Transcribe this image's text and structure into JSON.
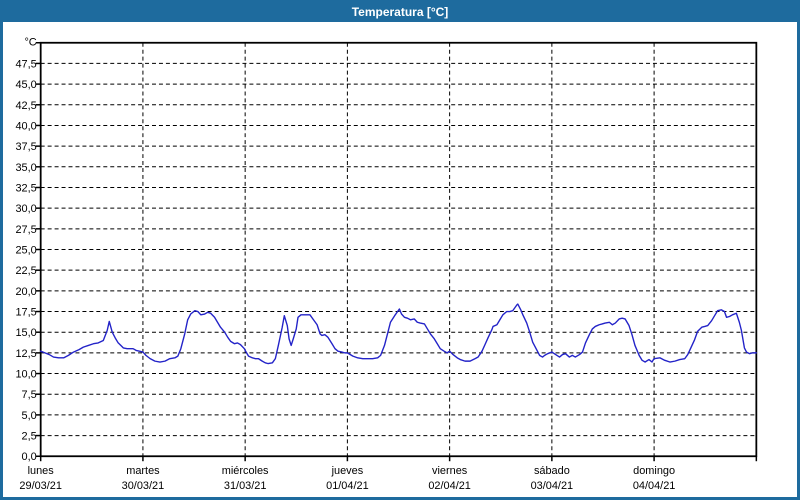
{
  "window": {
    "title": "Temperatura [°C]"
  },
  "colors": {
    "frame": "#1E6B9E",
    "titlebar_bg": "#1E6B9E",
    "title_text": "#FFFFFF",
    "plot_border": "#000000",
    "gridline": "#000000",
    "line": "#2323C8",
    "label_text": "#000000",
    "background": "#FFFFFF"
  },
  "chart_data": {
    "type": "line",
    "title": "Temperatura [°C]",
    "legend": "none",
    "grid": "dashed",
    "y_axis": {
      "unit_label": "°C",
      "min": 0,
      "max": 50,
      "tick_step": 2.5,
      "tick_labels": [
        "47,5",
        "45,0",
        "42,5",
        "40,0",
        "37,5",
        "35,0",
        "32,5",
        "30,0",
        "27,5",
        "25,0",
        "22,5",
        "20,0",
        "17,5",
        "15,0",
        "12,5",
        "10,0",
        "7,5",
        "5,0",
        "2,5",
        "0,0"
      ]
    },
    "x_axis": {
      "hours_total": 168,
      "day_ticks": [
        {
          "label": "lunes",
          "date": "29/03/21"
        },
        {
          "label": "martes",
          "date": "30/03/21"
        },
        {
          "label": "miércoles",
          "date": "31/03/21"
        },
        {
          "label": "jueves",
          "date": "01/04/21"
        },
        {
          "label": "viernes",
          "date": "02/04/21"
        },
        {
          "label": "sábado",
          "date": "03/04/21"
        },
        {
          "label": "domingo",
          "date": "04/04/21"
        }
      ]
    },
    "series": [
      {
        "name": "Temperatura",
        "color": "#2323C8",
        "points": [
          [
            0,
            12.7
          ],
          [
            1,
            12.5
          ],
          [
            2,
            12.3
          ],
          [
            3,
            12.0
          ],
          [
            4.2,
            11.9
          ],
          [
            5.4,
            11.9
          ],
          [
            6.5,
            12.2
          ],
          [
            7.7,
            12.6
          ],
          [
            9,
            12.9
          ],
          [
            10,
            13.2
          ],
          [
            11.2,
            13.4
          ],
          [
            12.4,
            13.6
          ],
          [
            13.5,
            13.7
          ],
          [
            14.7,
            14.0
          ],
          [
            15.6,
            15.2
          ],
          [
            16.1,
            16.3
          ],
          [
            16.8,
            15.0
          ],
          [
            17.5,
            14.3
          ],
          [
            18.2,
            13.7
          ],
          [
            18.8,
            13.4
          ],
          [
            19.4,
            13.1
          ],
          [
            20.3,
            13.0
          ],
          [
            21.7,
            13.0
          ],
          [
            22.4,
            12.8
          ],
          [
            23.2,
            12.7
          ],
          [
            24,
            12.6
          ],
          [
            24.7,
            12.2
          ],
          [
            25.7,
            11.8
          ],
          [
            26.8,
            11.5
          ],
          [
            28,
            11.4
          ],
          [
            29.2,
            11.5
          ],
          [
            30.3,
            11.8
          ],
          [
            31.5,
            11.9
          ],
          [
            32.2,
            12.1
          ],
          [
            32.9,
            13.0
          ],
          [
            33.8,
            14.8
          ],
          [
            34.5,
            16.5
          ],
          [
            35.2,
            17.2
          ],
          [
            36.2,
            17.6
          ],
          [
            36.9,
            17.5
          ],
          [
            37.6,
            17.1
          ],
          [
            38.5,
            17.2
          ],
          [
            39.2,
            17.4
          ],
          [
            39.9,
            17.3
          ],
          [
            40.8,
            16.8
          ],
          [
            41.5,
            16.2
          ],
          [
            42.2,
            15.6
          ],
          [
            43.2,
            15.0
          ],
          [
            43.9,
            14.4
          ],
          [
            44.6,
            13.9
          ],
          [
            45.5,
            13.6
          ],
          [
            46.2,
            13.7
          ],
          [
            46.9,
            13.5
          ],
          [
            47.8,
            13.0
          ],
          [
            48,
            12.8
          ],
          [
            48.8,
            12.1
          ],
          [
            49.7,
            11.9
          ],
          [
            50.4,
            11.8
          ],
          [
            51.1,
            11.8
          ],
          [
            52,
            11.5
          ],
          [
            52.7,
            11.3
          ],
          [
            53.4,
            11.2
          ],
          [
            54.4,
            11.3
          ],
          [
            55.1,
            11.8
          ],
          [
            55.8,
            13.4
          ],
          [
            56.7,
            15.6
          ],
          [
            57.2,
            17.0
          ],
          [
            57.9,
            15.8
          ],
          [
            58.3,
            14.2
          ],
          [
            58.8,
            13.4
          ],
          [
            59.3,
            14.2
          ],
          [
            60,
            15.4
          ],
          [
            60.4,
            16.8
          ],
          [
            61.1,
            17.1
          ],
          [
            62.1,
            17.1
          ],
          [
            63.2,
            17.1
          ],
          [
            63.9,
            16.6
          ],
          [
            64.9,
            15.9
          ],
          [
            65.6,
            14.8
          ],
          [
            66,
            14.6
          ],
          [
            66.7,
            14.7
          ],
          [
            67.4,
            14.4
          ],
          [
            68.4,
            13.6
          ],
          [
            69.1,
            13.0
          ],
          [
            69.8,
            12.7
          ],
          [
            70.7,
            12.6
          ],
          [
            71.4,
            12.5
          ],
          [
            72,
            12.5
          ],
          [
            73.3,
            12.1
          ],
          [
            74.4,
            11.9
          ],
          [
            75.6,
            11.8
          ],
          [
            76.8,
            11.8
          ],
          [
            77.9,
            11.8
          ],
          [
            79.1,
            11.9
          ],
          [
            79.8,
            12.2
          ],
          [
            80.7,
            13.4
          ],
          [
            81.4,
            14.8
          ],
          [
            82.1,
            16.2
          ],
          [
            83.1,
            17.0
          ],
          [
            83.8,
            17.5
          ],
          [
            84.2,
            17.8
          ],
          [
            84.7,
            17.2
          ],
          [
            85.4,
            16.8
          ],
          [
            86.1,
            16.7
          ],
          [
            86.8,
            16.5
          ],
          [
            87.7,
            16.6
          ],
          [
            88.4,
            16.2
          ],
          [
            89.1,
            16.1
          ],
          [
            90.1,
            16.0
          ],
          [
            90.8,
            15.4
          ],
          [
            91.5,
            14.8
          ],
          [
            92.4,
            14.2
          ],
          [
            93.1,
            13.6
          ],
          [
            93.8,
            13.0
          ],
          [
            94.7,
            12.7
          ],
          [
            95.4,
            12.5
          ],
          [
            96,
            12.7
          ],
          [
            96.8,
            12.3
          ],
          [
            97.8,
            11.9
          ],
          [
            98.5,
            11.7
          ],
          [
            99.6,
            11.5
          ],
          [
            100.8,
            11.5
          ],
          [
            102,
            11.8
          ],
          [
            102.7,
            12.0
          ],
          [
            103.6,
            12.7
          ],
          [
            104.3,
            13.5
          ],
          [
            105,
            14.3
          ],
          [
            105.9,
            15.3
          ],
          [
            106.2,
            15.7
          ],
          [
            107.1,
            15.9
          ],
          [
            107.8,
            16.5
          ],
          [
            108.5,
            17.1
          ],
          [
            109.4,
            17.5
          ],
          [
            110.1,
            17.5
          ],
          [
            110.8,
            17.6
          ],
          [
            111.8,
            18.3
          ],
          [
            112,
            18.4
          ],
          [
            112.7,
            17.7
          ],
          [
            113.2,
            17.1
          ],
          [
            114.1,
            16.1
          ],
          [
            114.8,
            15.0
          ],
          [
            115.5,
            13.8
          ],
          [
            116.4,
            12.9
          ],
          [
            117.1,
            12.2
          ],
          [
            117.8,
            12.0
          ],
          [
            118.3,
            12.2
          ],
          [
            119,
            12.4
          ],
          [
            120,
            12.6
          ],
          [
            120.9,
            12.3
          ],
          [
            121.8,
            12.0
          ],
          [
            122.5,
            12.3
          ],
          [
            123.2,
            12.4
          ],
          [
            124.1,
            12.0
          ],
          [
            124.8,
            12.2
          ],
          [
            125.5,
            12.0
          ],
          [
            126.5,
            12.3
          ],
          [
            127.2,
            12.6
          ],
          [
            127.9,
            13.7
          ],
          [
            128.8,
            14.7
          ],
          [
            129.5,
            15.4
          ],
          [
            130.2,
            15.7
          ],
          [
            131.1,
            15.9
          ],
          [
            131.8,
            16.0
          ],
          [
            132.5,
            16.1
          ],
          [
            133.5,
            16.2
          ],
          [
            134.2,
            15.9
          ],
          [
            134.9,
            16.1
          ],
          [
            135.8,
            16.6
          ],
          [
            136.5,
            16.7
          ],
          [
            137.2,
            16.6
          ],
          [
            138.1,
            15.8
          ],
          [
            138.8,
            14.7
          ],
          [
            139.5,
            13.4
          ],
          [
            140.5,
            12.2
          ],
          [
            141.2,
            11.6
          ],
          [
            141.9,
            11.4
          ],
          [
            142.8,
            11.7
          ],
          [
            143.5,
            11.4
          ],
          [
            144,
            11.8
          ],
          [
            145.4,
            11.9
          ],
          [
            146.5,
            11.6
          ],
          [
            147.7,
            11.4
          ],
          [
            148.9,
            11.5
          ],
          [
            150,
            11.7
          ],
          [
            151.2,
            11.8
          ],
          [
            151.9,
            12.3
          ],
          [
            152.8,
            13.3
          ],
          [
            153.5,
            14.1
          ],
          [
            154.2,
            15.1
          ],
          [
            155.2,
            15.6
          ],
          [
            155.9,
            15.7
          ],
          [
            156.6,
            15.8
          ],
          [
            157.5,
            16.4
          ],
          [
            158.2,
            17.0
          ],
          [
            158.9,
            17.6
          ],
          [
            159.8,
            17.7
          ],
          [
            160.5,
            17.5
          ],
          [
            161,
            16.8
          ],
          [
            161.7,
            16.9
          ],
          [
            162.4,
            17.1
          ],
          [
            163.3,
            17.3
          ],
          [
            164,
            16.2
          ],
          [
            164.5,
            15.2
          ],
          [
            165.2,
            13.1
          ],
          [
            165.7,
            12.6
          ],
          [
            166.4,
            12.4
          ],
          [
            167.1,
            12.5
          ],
          [
            168,
            12.5
          ]
        ]
      }
    ]
  }
}
